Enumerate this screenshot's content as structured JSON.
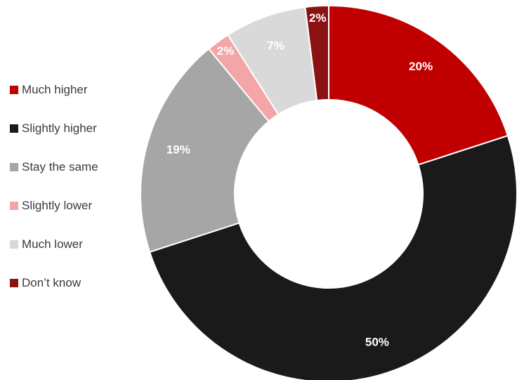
{
  "chart_data": {
    "type": "pie",
    "title": "",
    "series": [
      {
        "values": [
          20,
          50,
          19,
          2,
          7,
          2
        ],
        "labels": [
          "20%",
          "50%",
          "19%",
          "2%",
          "7%",
          "2%"
        ]
      }
    ],
    "categories": [
      "Much higher",
      "Slightly higher",
      "Stay the same",
      "Slightly lower",
      "Much lower",
      "Don’t know"
    ],
    "colors": [
      "#c00000",
      "#1a1a1a",
      "#a6a6a6",
      "#f4a6a6",
      "#d9d9d9",
      "#8b1212"
    ],
    "style": "donut",
    "legend_position": "left"
  }
}
